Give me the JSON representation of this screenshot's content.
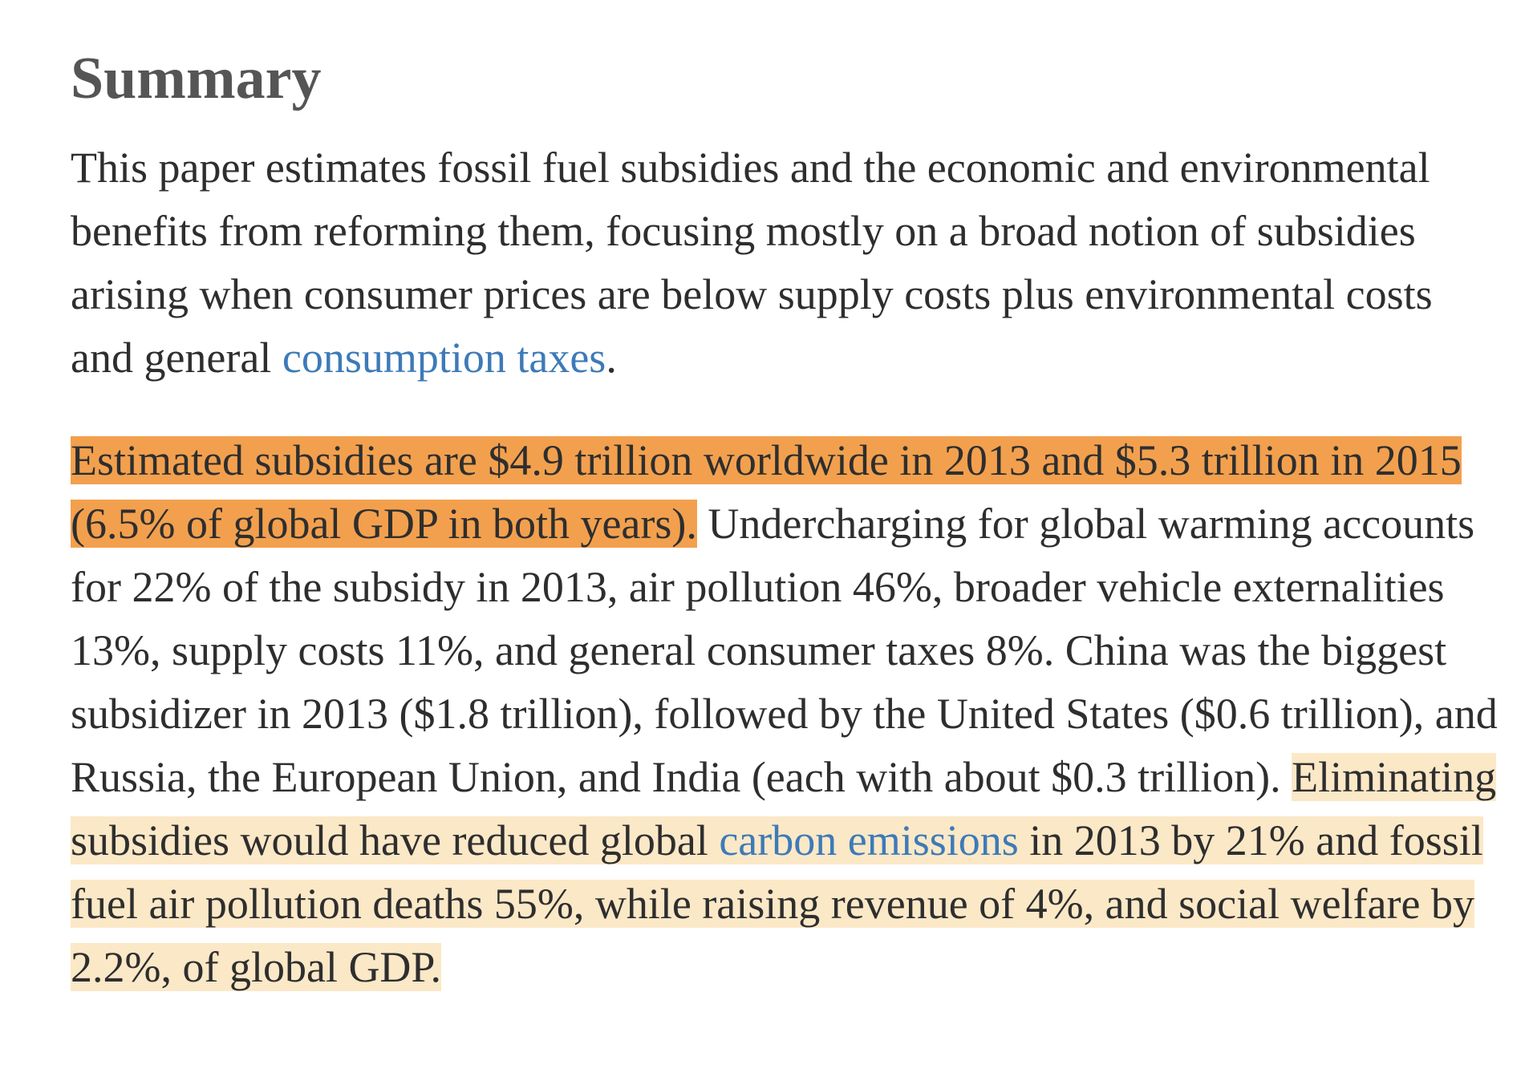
{
  "summary": {
    "title": "Summary",
    "p1": {
      "text": "This paper estimates fossil fuel subsidies and the economic and environmental benefits from reforming them, focusing mostly on a broad notion of subsidies arising when consumer prices are below supply costs plus environmental costs and general ",
      "link": "consumption taxes",
      "end": "."
    },
    "p2": {
      "highlight_strong": "Estimated subsidies are $4.9 trillion worldwide in 2013 and $5.3 trillion in 2015 (6.5% of global GDP in both years).",
      "plain": " Undercharging for global warming accounts for 22% of the subsidy in 2013, air pollution 46%, broader vehicle externalities 13%, supply costs 11%, and general consumer taxes 8%. China was the biggest subsidizer in 2013 ($1.8 trillion), followed by the United States ($0.6 trillion), and Russia, the European Union, and India (each with about $0.3 trillion). ",
      "highlight_soft_a": "Eliminating subsidies would have reduced global ",
      "link": "carbon emissions",
      "highlight_soft_b": " in 2013 by 21% and fossil fuel air pollution deaths 55%, while raising revenue of 4%, and social welfare by 2.2%, of global GDP."
    }
  },
  "colors": {
    "link": "#3d7ab8",
    "highlight_strong": "#f2a04e",
    "highlight_soft": "#fbe8c7",
    "title": "#555555",
    "text": "#2e2e2e"
  }
}
